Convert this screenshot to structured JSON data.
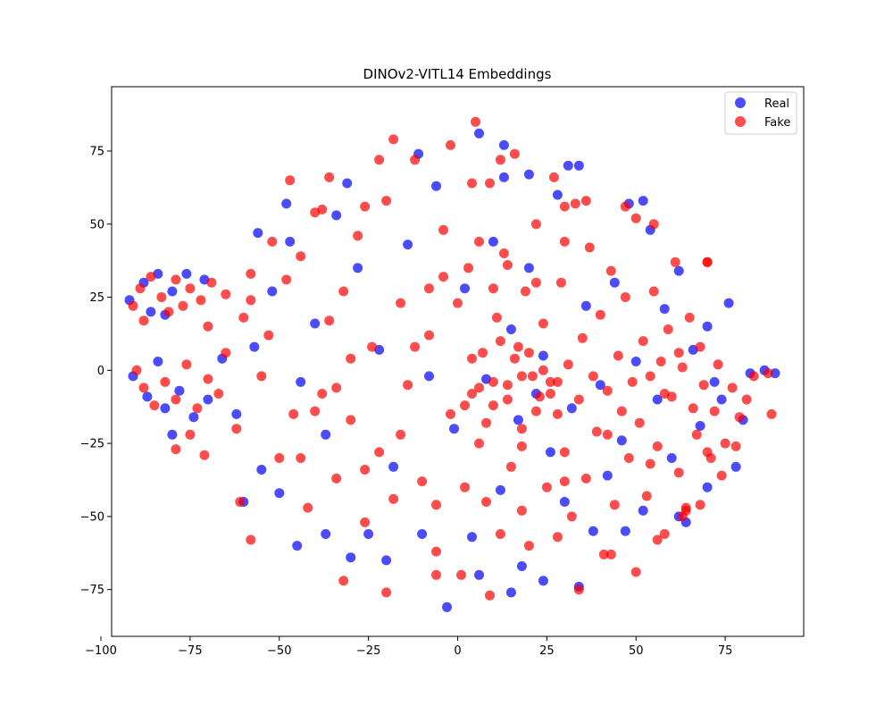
{
  "chart_data": {
    "type": "scatter",
    "title": "DINOv2-VITL14 Embeddings",
    "xlabel": "",
    "ylabel": "",
    "xlim": [
      -97,
      97
    ],
    "ylim": [
      -91,
      97
    ],
    "xticks": [
      -100,
      -75,
      -50,
      -25,
      0,
      25,
      50,
      75
    ],
    "yticks": [
      -75,
      -50,
      -25,
      0,
      25,
      50,
      75
    ],
    "grid": false,
    "legend_position": "top-right",
    "series": [
      {
        "name": "Real",
        "color": "#0000ff",
        "points": [
          [
            -92,
            24
          ],
          [
            -88,
            30
          ],
          [
            -84,
            33
          ],
          [
            -80,
            27
          ],
          [
            -76,
            33
          ],
          [
            -86,
            20
          ],
          [
            -82,
            19
          ],
          [
            -71,
            31
          ],
          [
            -91,
            -2
          ],
          [
            -87,
            -9
          ],
          [
            -82,
            -13
          ],
          [
            -78,
            -7
          ],
          [
            -84,
            3
          ],
          [
            -80,
            -22
          ],
          [
            -74,
            -16
          ],
          [
            -70,
            -10
          ],
          [
            -66,
            4
          ],
          [
            -62,
            -15
          ],
          [
            -57,
            8
          ],
          [
            -52,
            27
          ],
          [
            -55,
            -34
          ],
          [
            -50,
            -42
          ],
          [
            -47,
            44
          ],
          [
            -44,
            -4
          ],
          [
            -40,
            16
          ],
          [
            -37,
            -22
          ],
          [
            -34,
            53
          ],
          [
            -31,
            64
          ],
          [
            -28,
            35
          ],
          [
            -25,
            -56
          ],
          [
            -22,
            7
          ],
          [
            -18,
            -33
          ],
          [
            -14,
            43
          ],
          [
            -11,
            74
          ],
          [
            -8,
            -2
          ],
          [
            -6,
            63
          ],
          [
            -3,
            -81
          ],
          [
            -1,
            -20
          ],
          [
            2,
            28
          ],
          [
            4,
            -57
          ],
          [
            6,
            81
          ],
          [
            8,
            -3
          ],
          [
            10,
            44
          ],
          [
            12,
            -41
          ],
          [
            13,
            66
          ],
          [
            15,
            14
          ],
          [
            17,
            -17
          ],
          [
            18,
            -67
          ],
          [
            20,
            35
          ],
          [
            22,
            -8
          ],
          [
            24,
            5
          ],
          [
            26,
            -28
          ],
          [
            28,
            60
          ],
          [
            30,
            -45
          ],
          [
            32,
            -13
          ],
          [
            34,
            70
          ],
          [
            36,
            22
          ],
          [
            38,
            -55
          ],
          [
            40,
            -5
          ],
          [
            42,
            -36
          ],
          [
            44,
            30
          ],
          [
            46,
            -24
          ],
          [
            48,
            57
          ],
          [
            50,
            3
          ],
          [
            52,
            -48
          ],
          [
            54,
            48
          ],
          [
            56,
            -10
          ],
          [
            58,
            21
          ],
          [
            60,
            -30
          ],
          [
            62,
            34
          ],
          [
            64,
            -52
          ],
          [
            66,
            7
          ],
          [
            68,
            -19
          ],
          [
            70,
            15
          ],
          [
            72,
            -4
          ],
          [
            74,
            -10
          ],
          [
            76,
            23
          ],
          [
            78,
            -33
          ],
          [
            80,
            -17
          ],
          [
            82,
            -1
          ],
          [
            86,
            0
          ],
          [
            89,
            -1
          ],
          [
            -45,
            -60
          ],
          [
            -37,
            -56
          ],
          [
            -30,
            -64
          ],
          [
            -20,
            -65
          ],
          [
            -10,
            -56
          ],
          [
            6,
            -70
          ],
          [
            15,
            -76
          ],
          [
            24,
            -72
          ],
          [
            34,
            -74
          ],
          [
            47,
            -55
          ],
          [
            62,
            -50
          ],
          [
            -60,
            -45
          ],
          [
            -56,
            47
          ],
          [
            -48,
            57
          ],
          [
            52,
            58
          ],
          [
            70,
            -40
          ],
          [
            13,
            77
          ],
          [
            20,
            67
          ],
          [
            31,
            70
          ]
        ]
      },
      {
        "name": "Fake",
        "color": "#ff0000",
        "points": [
          [
            -91,
            22
          ],
          [
            -89,
            28
          ],
          [
            -86,
            32
          ],
          [
            -83,
            25
          ],
          [
            -79,
            31
          ],
          [
            -75,
            28
          ],
          [
            -72,
            24
          ],
          [
            -69,
            30
          ],
          [
            -88,
            17
          ],
          [
            -81,
            20
          ],
          [
            -77,
            22
          ],
          [
            -90,
            0
          ],
          [
            -88,
            -6
          ],
          [
            -85,
            -12
          ],
          [
            -82,
            -4
          ],
          [
            -79,
            -10
          ],
          [
            -76,
            2
          ],
          [
            -73,
            -13
          ],
          [
            -70,
            -3
          ],
          [
            -75,
            -22
          ],
          [
            -79,
            -27
          ],
          [
            -71,
            -29
          ],
          [
            -67,
            -8
          ],
          [
            -65,
            6
          ],
          [
            -62,
            -20
          ],
          [
            -60,
            18
          ],
          [
            -58,
            24
          ],
          [
            -55,
            -2
          ],
          [
            -53,
            12
          ],
          [
            -50,
            -30
          ],
          [
            -48,
            31
          ],
          [
            -46,
            -15
          ],
          [
            -44,
            39
          ],
          [
            -42,
            -47
          ],
          [
            -40,
            54
          ],
          [
            -38,
            -8
          ],
          [
            -36,
            17
          ],
          [
            -34,
            -37
          ],
          [
            -32,
            27
          ],
          [
            -30,
            -17
          ],
          [
            -28,
            46
          ],
          [
            -26,
            -52
          ],
          [
            -24,
            8
          ],
          [
            -22,
            -28
          ],
          [
            -20,
            58
          ],
          [
            -18,
            -44
          ],
          [
            -16,
            23
          ],
          [
            -14,
            -5
          ],
          [
            -12,
            72
          ],
          [
            -10,
            -38
          ],
          [
            -8,
            12
          ],
          [
            -6,
            -62
          ],
          [
            -4,
            48
          ],
          [
            -2,
            -15
          ],
          [
            0,
            23
          ],
          [
            1,
            -70
          ],
          [
            3,
            35
          ],
          [
            4,
            -8
          ],
          [
            5,
            85
          ],
          [
            6,
            -25
          ],
          [
            7,
            6
          ],
          [
            8,
            -45
          ],
          [
            9,
            64
          ],
          [
            10,
            -12
          ],
          [
            11,
            18
          ],
          [
            12,
            -56
          ],
          [
            13,
            40
          ],
          [
            14,
            -5
          ],
          [
            15,
            -33
          ],
          [
            16,
            74
          ],
          [
            17,
            8
          ],
          [
            18,
            -20
          ],
          [
            19,
            27
          ],
          [
            20,
            -60
          ],
          [
            21,
            -2
          ],
          [
            22,
            50
          ],
          [
            23,
            -9
          ],
          [
            24,
            16
          ],
          [
            25,
            -40
          ],
          [
            26,
            -4
          ],
          [
            27,
            66
          ],
          [
            28,
            -15
          ],
          [
            29,
            30
          ],
          [
            30,
            -28
          ],
          [
            31,
            2
          ],
          [
            32,
            -50
          ],
          [
            33,
            57
          ],
          [
            34,
            -10
          ],
          [
            35,
            11
          ],
          [
            36,
            -37
          ],
          [
            37,
            42
          ],
          [
            38,
            -2
          ],
          [
            39,
            -21
          ],
          [
            40,
            19
          ],
          [
            41,
            -63
          ],
          [
            42,
            -7
          ],
          [
            43,
            34
          ],
          [
            44,
            -46
          ],
          [
            45,
            5
          ],
          [
            46,
            -14
          ],
          [
            47,
            25
          ],
          [
            48,
            -30
          ],
          [
            49,
            -4
          ],
          [
            50,
            52
          ],
          [
            51,
            -18
          ],
          [
            52,
            10
          ],
          [
            53,
            -43
          ],
          [
            54,
            -2
          ],
          [
            55,
            27
          ],
          [
            56,
            -26
          ],
          [
            57,
            3
          ],
          [
            58,
            -56
          ],
          [
            59,
            14
          ],
          [
            60,
            -9
          ],
          [
            61,
            37
          ],
          [
            62,
            -35
          ],
          [
            63,
            1
          ],
          [
            64,
            -47
          ],
          [
            65,
            18
          ],
          [
            66,
            -13
          ],
          [
            67,
            -22
          ],
          [
            68,
            8
          ],
          [
            69,
            -5
          ],
          [
            70,
            37
          ],
          [
            71,
            -30
          ],
          [
            72,
            -14
          ],
          [
            73,
            2
          ],
          [
            75,
            -25
          ],
          [
            77,
            -6
          ],
          [
            79,
            -16
          ],
          [
            81,
            -10
          ],
          [
            83,
            -2
          ],
          [
            87,
            -1
          ],
          [
            88,
            -15
          ],
          [
            -38,
            55
          ],
          [
            -47,
            65
          ],
          [
            -22,
            72
          ],
          [
            -18,
            79
          ],
          [
            -2,
            77
          ],
          [
            9,
            -77
          ],
          [
            -6,
            -70
          ],
          [
            -20,
            -76
          ],
          [
            -32,
            -72
          ],
          [
            34,
            -75
          ],
          [
            28,
            -57
          ],
          [
            43,
            -63
          ],
          [
            50,
            -69
          ],
          [
            64,
            -48
          ],
          [
            56,
            -58
          ],
          [
            -61,
            -45
          ],
          [
            -58,
            33
          ],
          [
            -36,
            66
          ],
          [
            47,
            56
          ],
          [
            55,
            50
          ],
          [
            70,
            37
          ],
          [
            -65,
            26
          ],
          [
            -70,
            15
          ],
          [
            -30,
            4
          ],
          [
            -12,
            8
          ],
          [
            4,
            4
          ],
          [
            10,
            -4
          ],
          [
            14,
            -10
          ],
          [
            18,
            -2
          ],
          [
            22,
            -14
          ],
          [
            16,
            4
          ],
          [
            8,
            -18
          ],
          [
            20,
            6
          ],
          [
            26,
            -8
          ],
          [
            12,
            10
          ],
          [
            6,
            -6
          ],
          [
            24,
            0
          ],
          [
            2,
            -12
          ],
          [
            28,
            -4
          ],
          [
            18,
            -26
          ],
          [
            10,
            28
          ],
          [
            14,
            36
          ],
          [
            6,
            44
          ],
          [
            22,
            30
          ],
          [
            30,
            44
          ],
          [
            -4,
            32
          ],
          [
            -8,
            28
          ],
          [
            4,
            64
          ],
          [
            12,
            72
          ],
          [
            30,
            56
          ],
          [
            36,
            58
          ],
          [
            -26,
            56
          ],
          [
            -52,
            44
          ],
          [
            -58,
            -58
          ],
          [
            -44,
            -30
          ],
          [
            -40,
            -14
          ],
          [
            -34,
            -6
          ],
          [
            -26,
            -34
          ],
          [
            -16,
            -22
          ],
          [
            -6,
            -46
          ],
          [
            2,
            -40
          ],
          [
            18,
            -48
          ],
          [
            30,
            -38
          ],
          [
            42,
            -22
          ],
          [
            54,
            -32
          ],
          [
            58,
            -8
          ],
          [
            62,
            6
          ],
          [
            70,
            -28
          ],
          [
            74,
            -36
          ],
          [
            78,
            -26
          ],
          [
            68,
            -46
          ],
          [
            63,
            -50
          ]
        ]
      }
    ]
  }
}
